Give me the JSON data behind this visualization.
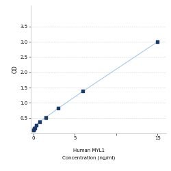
{
  "x_data": [
    0,
    0.047,
    0.094,
    0.188,
    0.375,
    0.75,
    1.5,
    3,
    6,
    15
  ],
  "y_data": [
    0.105,
    0.12,
    0.155,
    0.19,
    0.28,
    0.38,
    0.52,
    0.82,
    1.38,
    3.0
  ],
  "line_color": "#a8c8e8",
  "marker_color": "#1a3a6b",
  "marker_size": 3.5,
  "xlabel_line1": "Human MYL1",
  "xlabel_line2": "Concentration (ng/ml)",
  "ylabel": "OD",
  "xlim": [
    -0.3,
    16
  ],
  "ylim": [
    0,
    4.2
  ],
  "yticks": [
    0.5,
    1.0,
    1.5,
    2.0,
    2.5,
    3.0,
    3.5
  ],
  "xticks": [
    0,
    5,
    10,
    15
  ],
  "xtick_labels": [
    "0",
    "5",
    "",
    "15"
  ],
  "grid_color": "#d0d0d0",
  "bg_color": "#ffffff",
  "xlabel_fontsize": 5.0,
  "ylabel_fontsize": 5.5,
  "tick_fontsize": 5.0,
  "figure_width": 2.5,
  "figure_height": 2.5,
  "dpi": 100
}
